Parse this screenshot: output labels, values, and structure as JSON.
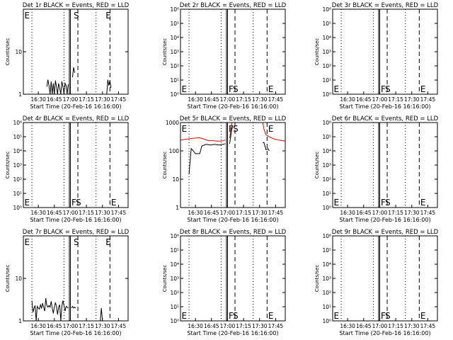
{
  "panel_titles": [
    "Det 1r BLACK = Events, RED = LLD",
    "Det 2r BLACK = Events, RED = LLD",
    "Det 3r BLACK = Events, RED = LLD",
    "Det 4r BLACK = Events, RED = LLD",
    "Det 5r BLACK = Events, RED = LLD",
    "Det 6r BLACK = Events, RED = LLD",
    "Det 7r BLACK = Events, RED = LLD",
    "Det 8r BLACK = Events, RED = LLD",
    "Det 9r BLACK = Events, RED = LLD"
  ],
  "ylabel": "Counts/sec",
  "xlabel": "Start Time (20-Feb-16 16:16:00)",
  "x_tick_labels": [
    "16:30",
    "16:45",
    "17:00",
    "17:15",
    "17:30",
    "17:45"
  ],
  "marker_letters": {
    "E": "E",
    "F": "F",
    "S": "S"
  },
  "colors": {
    "events": "#000000",
    "lld": "#dd0000",
    "axis": "#000000"
  },
  "chart_data": [
    {
      "type": "line",
      "detector": "1r",
      "ylog": true,
      "ylim": [
        1,
        100
      ],
      "ytick_labels": [
        "1",
        "10"
      ],
      "yticks": [
        1,
        10
      ],
      "xlim": [
        "16:16",
        "17:54"
      ],
      "vlines": {
        "dotted": [
          "16:24",
          "16:54",
          "17:24"
        ],
        "dashed": [
          "17:07",
          "17:37"
        ],
        "solid": [
          "16:59",
          "17:00"
        ]
      },
      "markers": [
        {
          "letter": "E",
          "time": "16:17"
        },
        {
          "letter": "S",
          "time": "17:03"
        },
        {
          "letter": "E",
          "time": "17:33"
        }
      ],
      "marker_level": "top",
      "series": [
        {
          "name": "BLACK = Events",
          "color": "#000000",
          "points": [
            [
              "16:38",
              1.5
            ],
            [
              "16:39",
              2.2
            ],
            [
              "16:40",
              1.6
            ],
            [
              "16:41",
              1.0
            ],
            [
              "16:42",
              2.0
            ],
            [
              "16:43",
              1.0
            ],
            [
              "16:44",
              1.8
            ],
            [
              "16:45",
              1.0
            ],
            [
              "16:46",
              2.1
            ],
            [
              "16:47",
              1.5
            ],
            [
              "16:48",
              1.0
            ],
            [
              "16:49",
              1.8
            ],
            [
              "16:50",
              1.4
            ],
            [
              "16:51",
              1.0
            ],
            [
              "16:52",
              2.0
            ],
            [
              "16:53",
              1.5
            ],
            [
              "16:54",
              1.0
            ],
            [
              "16:55",
              1.8
            ],
            [
              "16:56",
              1.6
            ],
            [
              "16:57",
              1.0
            ],
            [
              "16:58",
              1.7
            ]
          ],
          "extra_points": [
            [
              "17:02",
              2.5
            ],
            [
              "17:03",
              4.3
            ],
            [
              "17:04",
              3.2
            ]
          ],
          "tail_points": [
            [
              "17:34",
              1.0
            ],
            [
              "17:35",
              2.2
            ],
            [
              "17:36",
              1.6
            ],
            [
              "17:37",
              2.1
            ],
            [
              "17:38",
              1.4
            ]
          ]
        }
      ]
    },
    {
      "type": "line",
      "detector": "2r",
      "ylog": true,
      "ylim": [
        1,
        1000000
      ],
      "ytick_labels": [
        "10⁰",
        "10¹",
        "10²",
        "10³",
        "10⁴",
        "10⁵",
        "10⁶"
      ],
      "yticks": [
        1,
        10,
        100,
        1000,
        10000,
        100000,
        1000000
      ],
      "xlim": [
        "16:16",
        "17:54"
      ],
      "vlines": {
        "dotted": [
          "16:24",
          "16:54",
          "17:24"
        ],
        "dashed": [
          "17:07",
          "17:37"
        ],
        "solid": [
          "16:59",
          "17:00"
        ]
      },
      "markers": [
        {
          "letter": "E",
          "time": "16:17"
        },
        {
          "letter": "F",
          "time": "17:01"
        },
        {
          "letter": "S",
          "time": "17:05"
        },
        {
          "letter": "E",
          "time": "17:38"
        }
      ],
      "marker_level": "bottom",
      "series": []
    },
    {
      "type": "line",
      "detector": "3r",
      "ylog": true,
      "ylim": [
        1,
        1000000
      ],
      "ytick_labels": [
        "10⁰",
        "10¹",
        "10²",
        "10³",
        "10⁴",
        "10⁵",
        "10⁶"
      ],
      "yticks": [
        1,
        10,
        100,
        1000,
        10000,
        100000,
        1000000
      ],
      "xlim": [
        "16:16",
        "17:54"
      ],
      "vlines": {
        "dotted": [
          "16:24",
          "16:54",
          "17:24"
        ],
        "dashed": [
          "17:07",
          "17:37"
        ],
        "solid": [
          "16:59",
          "17:00"
        ]
      },
      "markers": [
        {
          "letter": "E",
          "time": "16:17"
        },
        {
          "letter": "F",
          "time": "17:01"
        },
        {
          "letter": "S",
          "time": "17:05"
        },
        {
          "letter": "E",
          "time": "17:38"
        }
      ],
      "marker_level": "bottom",
      "series": []
    },
    {
      "type": "line",
      "detector": "4r",
      "ylog": true,
      "ylim": [
        1,
        1000000
      ],
      "ytick_labels": [
        "10⁰",
        "10¹",
        "10²",
        "10³",
        "10⁴",
        "10⁵",
        "10⁶"
      ],
      "yticks": [
        1,
        10,
        100,
        1000,
        10000,
        100000,
        1000000
      ],
      "xlim": [
        "16:16",
        "17:54"
      ],
      "vlines": {
        "dotted": [
          "16:24",
          "16:54",
          "17:24"
        ],
        "dashed": [
          "17:07",
          "17:37"
        ],
        "solid": [
          "16:59",
          "17:00"
        ]
      },
      "markers": [
        {
          "letter": "E",
          "time": "16:17"
        },
        {
          "letter": "F",
          "time": "17:01"
        },
        {
          "letter": "S",
          "time": "17:05"
        },
        {
          "letter": "E",
          "time": "17:38"
        }
      ],
      "marker_level": "bottom",
      "series": []
    },
    {
      "type": "line",
      "detector": "5r",
      "ylog": true,
      "ylim": [
        1,
        1000
      ],
      "ytick_labels": [
        "1",
        "10",
        "100",
        "1000"
      ],
      "yticks": [
        1,
        10,
        100,
        1000
      ],
      "xlim": [
        "16:16",
        "17:54"
      ],
      "vlines": {
        "dotted": [
          "16:24",
          "16:54",
          "17:24"
        ],
        "dashed": [
          "17:07",
          "17:37"
        ],
        "solid": [
          "16:59",
          "17:00"
        ]
      },
      "markers": [
        {
          "letter": "E",
          "time": "16:17"
        },
        {
          "letter": "F",
          "time": "17:01"
        },
        {
          "letter": "S",
          "time": "17:05"
        },
        {
          "letter": "E",
          "time": "17:38"
        }
      ],
      "marker_level": "top",
      "series": [
        {
          "name": "RED = LLD",
          "color": "#dd0000",
          "points": [
            [
              "16:16",
              240
            ],
            [
              "16:22",
              260
            ],
            [
              "16:28",
              280
            ],
            [
              "16:34",
              290
            ],
            [
              "16:38",
              260
            ],
            [
              "16:42",
              230
            ],
            [
              "16:46",
              230
            ],
            [
              "16:50",
              220
            ],
            [
              "16:54",
              220
            ],
            [
              "16:58",
              240
            ]
          ],
          "extra_points": [
            [
              "17:02",
              280
            ],
            [
              "17:03",
              500
            ],
            [
              "17:04",
              950
            ],
            [
              "17:05",
              1000
            ]
          ],
          "tail_points": [
            [
              "17:33",
              1000
            ],
            [
              "17:34",
              600
            ],
            [
              "17:36",
              370
            ],
            [
              "17:40",
              300
            ],
            [
              "17:44",
              260
            ],
            [
              "17:48",
              240
            ],
            [
              "17:54",
              220
            ]
          ]
        },
        {
          "name": "BLACK = Events",
          "color": "#000000",
          "points": [
            [
              "16:24",
              15
            ],
            [
              "16:26",
              120
            ],
            [
              "16:28",
              100
            ],
            [
              "16:30",
              80
            ],
            [
              "16:34",
              80
            ],
            [
              "16:36",
              150
            ],
            [
              "16:40",
              170
            ],
            [
              "16:44",
              160
            ],
            [
              "16:48",
              170
            ],
            [
              "16:52",
              160
            ],
            [
              "16:56",
              170
            ],
            [
              "16:58",
              180
            ]
          ],
          "extra_points": [
            [
              "17:02",
              180
            ],
            [
              "17:04",
              600
            ],
            [
              "17:05",
              800
            ]
          ],
          "tail_points": [
            [
              "17:33",
              190
            ],
            [
              "17:34",
              200
            ],
            [
              "17:36",
              110
            ],
            [
              "17:38",
              120
            ],
            [
              "17:39",
              100
            ]
          ]
        }
      ]
    },
    {
      "type": "line",
      "detector": "6r",
      "ylog": true,
      "ylim": [
        1,
        1000000
      ],
      "ytick_labels": [
        "10⁰",
        "10¹",
        "10²",
        "10³",
        "10⁴",
        "10⁵",
        "10⁶"
      ],
      "yticks": [
        1,
        10,
        100,
        1000,
        10000,
        100000,
        1000000
      ],
      "xlim": [
        "16:16",
        "17:54"
      ],
      "vlines": {
        "dotted": [
          "16:24",
          "16:54",
          "17:24"
        ],
        "dashed": [
          "17:07",
          "17:37"
        ],
        "solid": [
          "16:59",
          "17:00"
        ]
      },
      "markers": [
        {
          "letter": "E",
          "time": "16:17"
        },
        {
          "letter": "F",
          "time": "17:01"
        },
        {
          "letter": "S",
          "time": "17:05"
        },
        {
          "letter": "E",
          "time": "17:38"
        }
      ],
      "marker_level": "bottom",
      "series": []
    },
    {
      "type": "line",
      "detector": "7r",
      "ylog": true,
      "ylim": [
        1,
        100
      ],
      "ytick_labels": [
        "1",
        "10"
      ],
      "yticks": [
        1,
        10
      ],
      "xlim": [
        "16:16",
        "17:54"
      ],
      "vlines": {
        "dotted": [
          "16:24",
          "16:54",
          "17:24"
        ],
        "dashed": [
          "17:07",
          "17:37"
        ],
        "solid": [
          "16:59",
          "17:00"
        ]
      },
      "markers": [
        {
          "letter": "E",
          "time": "16:17"
        },
        {
          "letter": "S",
          "time": "17:03"
        },
        {
          "letter": "E",
          "time": "17:33"
        }
      ],
      "marker_level": "top",
      "series": [
        {
          "name": "BLACK = Events",
          "color": "#000000",
          "points": [
            [
              "16:24",
              3.0
            ],
            [
              "16:25",
              1.6
            ],
            [
              "16:26",
              2.0
            ],
            [
              "16:27",
              2.3
            ],
            [
              "16:28",
              1.0
            ],
            [
              "16:29",
              2.2
            ],
            [
              "16:30",
              2.0
            ],
            [
              "16:31",
              1.9
            ],
            [
              "16:32",
              2.4
            ],
            [
              "16:33",
              2.0
            ],
            [
              "16:34",
              2.6
            ],
            [
              "16:35",
              2.1
            ],
            [
              "16:36",
              1.7
            ],
            [
              "16:37",
              3.4
            ],
            [
              "16:38",
              2.3
            ],
            [
              "16:39",
              2.1
            ],
            [
              "16:40",
              2.3
            ],
            [
              "16:41",
              2.1
            ],
            [
              "16:42",
              2.9
            ],
            [
              "16:43",
              2.0
            ],
            [
              "16:44",
              1.5
            ],
            [
              "16:45",
              2.1
            ],
            [
              "16:46",
              2.7
            ],
            [
              "16:47",
              2.2
            ],
            [
              "16:48",
              1.4
            ],
            [
              "16:49",
              2.1
            ],
            [
              "16:50",
              2.4
            ],
            [
              "16:51",
              1.0
            ],
            [
              "16:52",
              2.2
            ],
            [
              "16:53",
              3.0
            ],
            [
              "16:54",
              2.3
            ],
            [
              "16:55",
              1.7
            ],
            [
              "16:56",
              2.2
            ],
            [
              "16:57",
              2.1
            ],
            [
              "16:58",
              2.0
            ]
          ],
          "extra_points": [
            [
              "17:01",
              2.0
            ],
            [
              "17:02",
              2.2
            ],
            [
              "17:03",
              2.0
            ],
            [
              "17:04",
              2.1
            ],
            [
              "17:05",
              2.0
            ]
          ],
          "tail_points": [
            [
              "17:28",
              1.0
            ],
            [
              "17:29",
              2.0
            ],
            [
              "17:30",
              1.0
            ]
          ]
        }
      ]
    },
    {
      "type": "line",
      "detector": "8r",
      "ylog": true,
      "ylim": [
        1,
        1000000
      ],
      "ytick_labels": [
        "10⁰",
        "10¹",
        "10²",
        "10³",
        "10⁴",
        "10⁵",
        "10⁶"
      ],
      "yticks": [
        1,
        10,
        100,
        1000,
        10000,
        100000,
        1000000
      ],
      "xlim": [
        "16:16",
        "17:54"
      ],
      "vlines": {
        "dotted": [
          "16:24",
          "16:54",
          "17:24"
        ],
        "dashed": [
          "17:07",
          "17:37"
        ],
        "solid": [
          "16:59",
          "17:00"
        ]
      },
      "markers": [
        {
          "letter": "E",
          "time": "16:17"
        },
        {
          "letter": "F",
          "time": "17:01"
        },
        {
          "letter": "S",
          "time": "17:05"
        },
        {
          "letter": "E",
          "time": "17:38"
        }
      ],
      "marker_level": "bottom",
      "series": []
    },
    {
      "type": "line",
      "detector": "9r",
      "ylog": true,
      "ylim": [
        1,
        1000000
      ],
      "ytick_labels": [
        "10⁰",
        "10¹",
        "10²",
        "10³",
        "10⁴",
        "10⁵",
        "10⁶"
      ],
      "yticks": [
        1,
        10,
        100,
        1000,
        10000,
        100000,
        1000000
      ],
      "xlim": [
        "16:16",
        "17:54"
      ],
      "vlines": {
        "dotted": [
          "16:24",
          "16:54",
          "17:24"
        ],
        "dashed": [
          "17:07",
          "17:37"
        ],
        "solid": [
          "16:59",
          "17:00"
        ]
      },
      "markers": [
        {
          "letter": "E",
          "time": "16:17"
        },
        {
          "letter": "F",
          "time": "17:01"
        },
        {
          "letter": "S",
          "time": "17:05"
        },
        {
          "letter": "E",
          "time": "17:38"
        }
      ],
      "marker_level": "bottom",
      "series": []
    }
  ]
}
